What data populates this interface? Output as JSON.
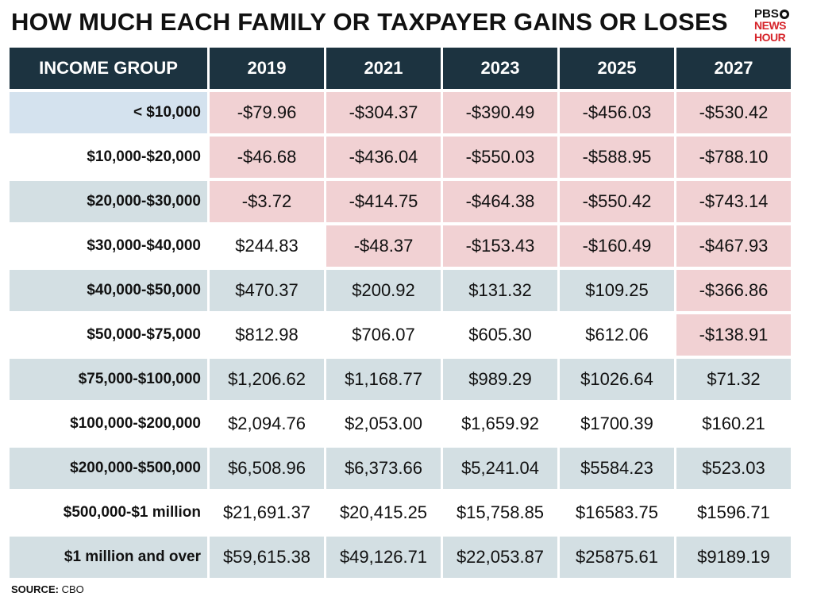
{
  "title": "HOW MUCH EACH FAMILY OR TAXPAYER GAINS OR LOSES",
  "logo": {
    "line1": "PBS",
    "line2": "NEWS",
    "line3": "HOUR"
  },
  "source": {
    "label": "SOURCE:",
    "value": "CBO"
  },
  "colors": {
    "header_bg": "#1c3340",
    "shade_bg": "#d3dfe3",
    "negative_bg": "#f1d1d3",
    "first_label_bg": "#d4e2ee"
  },
  "chart_data": {
    "type": "table",
    "title": "HOW MUCH EACH FAMILY OR TAXPAYER GAINS OR LOSES",
    "columns": [
      "INCOME GROUP",
      "2019",
      "2021",
      "2023",
      "2025",
      "2027"
    ],
    "rows": [
      {
        "group": "< $10,000",
        "values": [
          "-$79.96",
          "-$304.37",
          "-$390.49",
          "-$456.03",
          "-$530.42"
        ]
      },
      {
        "group": "$10,000-$20,000",
        "values": [
          "-$46.68",
          "-$436.04",
          "-$550.03",
          "-$588.95",
          "-$788.10"
        ]
      },
      {
        "group": "$20,000-$30,000",
        "values": [
          "-$3.72",
          "-$414.75",
          "-$464.38",
          "-$550.42",
          "-$743.14"
        ]
      },
      {
        "group": "$30,000-$40,000",
        "values": [
          "$244.83",
          "-$48.37",
          "-$153.43",
          "-$160.49",
          "-$467.93"
        ]
      },
      {
        "group": "$40,000-$50,000",
        "values": [
          "$470.37",
          "$200.92",
          "$131.32",
          "$109.25",
          "-$366.86"
        ]
      },
      {
        "group": "$50,000-$75,000",
        "values": [
          "$812.98",
          "$706.07",
          "$605.30",
          "$612.06",
          "-$138.91"
        ]
      },
      {
        "group": "$75,000-$100,000",
        "values": [
          "$1,206.62",
          "$1,168.77",
          "$989.29",
          "$1026.64",
          "$71.32"
        ]
      },
      {
        "group": "$100,000-$200,000",
        "values": [
          "$2,094.76",
          "$2,053.00",
          "$1,659.92",
          "$1700.39",
          "$160.21"
        ]
      },
      {
        "group": "$200,000-$500,000",
        "values": [
          "$6,508.96",
          "$6,373.66",
          "$5,241.04",
          "$5584.23",
          "$523.03"
        ]
      },
      {
        "group": "$500,000-$1 million",
        "values": [
          "$21,691.37",
          "$20,415.25",
          "$15,758.85",
          "$16583.75",
          "$1596.71"
        ]
      },
      {
        "group": "$1 million and over",
        "values": [
          "$59,615.38",
          "$49,126.71",
          "$22,053.87",
          "$25875.61",
          "$9189.19"
        ]
      }
    ]
  }
}
